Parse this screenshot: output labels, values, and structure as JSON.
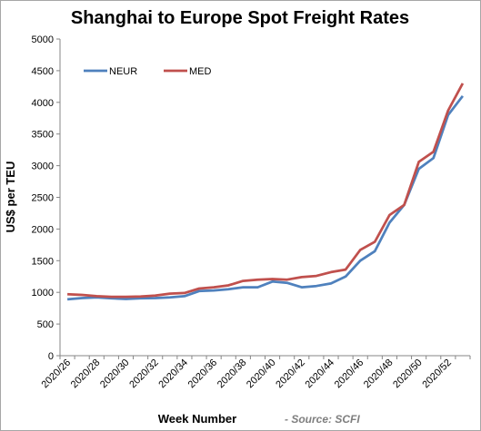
{
  "chart_data": {
    "type": "line",
    "title": "Shanghai to Europe Spot Freight Rates",
    "xlabel": "Week Number",
    "ylabel": "US$ per TEU",
    "source_note": "- Source: SCFI",
    "ylim": [
      0,
      5000
    ],
    "yticks": [
      "0",
      "500",
      "1000",
      "1500",
      "2000",
      "2500",
      "3000",
      "3500",
      "4000",
      "4500",
      "5000"
    ],
    "x": [
      "2020/26",
      "2020/27",
      "2020/28",
      "2020/29",
      "2020/30",
      "2020/31",
      "2020/32",
      "2020/33",
      "2020/34",
      "2020/35",
      "2020/36",
      "2020/37",
      "2020/38",
      "2020/39",
      "2020/40",
      "2020/41",
      "2020/42",
      "2020/43",
      "2020/44",
      "2020/45",
      "2020/46",
      "2020/47",
      "2020/48",
      "2020/49",
      "2020/50",
      "2020/51",
      "2020/52",
      "2020/53"
    ],
    "xtick_labels": [
      "2020/26",
      "2020/28",
      "2020/30",
      "2020/32",
      "2020/34",
      "2020/36",
      "2020/38",
      "2020/40",
      "2020/42",
      "2020/44",
      "2020/46",
      "2020/48",
      "2020/50",
      "2020/52"
    ],
    "grid": false,
    "legend_position": "top-left",
    "series": [
      {
        "name": "NEUR",
        "color": "#4f81bd",
        "values": [
          890,
          910,
          920,
          905,
          895,
          905,
          910,
          920,
          940,
          1020,
          1030,
          1050,
          1080,
          1080,
          1170,
          1150,
          1080,
          1100,
          1140,
          1250,
          1500,
          1650,
          2100,
          2380,
          2950,
          3120,
          3800,
          4100
        ]
      },
      {
        "name": "MED",
        "color": "#c0504d",
        "values": [
          970,
          960,
          940,
          930,
          930,
          935,
          950,
          980,
          990,
          1060,
          1080,
          1110,
          1180,
          1200,
          1210,
          1200,
          1240,
          1260,
          1320,
          1360,
          1670,
          1800,
          2220,
          2380,
          3060,
          3220,
          3870,
          4300
        ]
      }
    ]
  }
}
